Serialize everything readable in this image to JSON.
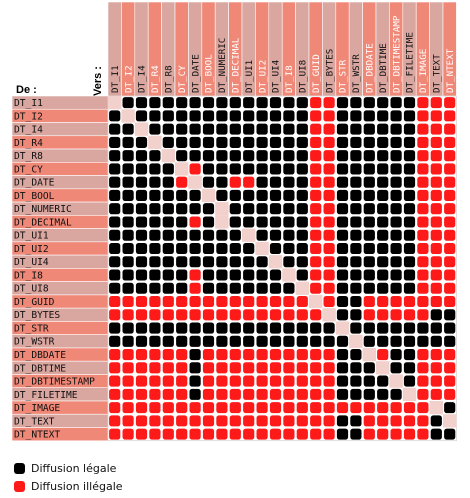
{
  "matrix": {
    "row_header": "De :",
    "column_header": "Vers :",
    "types": [
      "DT_I1",
      "DT_I2",
      "DT_I4",
      "DT_R4",
      "DT_R8",
      "DT_CY",
      "DT_DATE",
      "DT_BOOL",
      "DT_NUMERIC",
      "DT_DECIMAL",
      "DT_UI1",
      "DT_UI2",
      "DT_UI4",
      "DT_I8",
      "DT_UI8",
      "DT_GUID",
      "DT_BYTES",
      "DT_STR",
      "DT_WSTR",
      "DT_DBDATE",
      "DT_DBTIME",
      "DT_DBTIMESTAMP",
      "DT_FILETIME",
      "DT_IMAGE",
      "DT_TEXT",
      "DT_NTEXT"
    ],
    "cells": [
      "-LLLLLLLLLLLLLLIILLLLLLIII",
      "L-LLLLLLLLLLLLLIILLLLLLIII",
      "LL-LLLLLLLLLLLLIILLLLLLIII",
      "LLL-LLLLLLLLLLLIILLLLLLIII",
      "LLLL-LLLLLLLLLLIILLLLLLIII",
      "LLLLL-ILLLLLLLLIILLLLLLIII",
      "LLLLLI-LLIILLLLIILLLLLLIII",
      "LLLLLLL-LLLLLLLIILLLLLLIII",
      "LLLLLLLL-LLLLLLIILLLLLLIII",
      "LLLLLLIL-LLLLLLIILLLLLLIII",
      "LLLLLLLLLL-LLLLIILLLLLLIII",
      "LLLLLLLLLLL-LLLIILLLLLLIII",
      "LLLLLLLLLLLL-LLIILLLLLLIII",
      "LLLLLLILLLLLL-LIILLLLLLIII",
      "LLLLLLILLLLLLL-IILLLLLLIII",
      "IIIIIIIIIIIIIII-ILLIIIIIII",
      "IIIIIIIIIIIIIIII-LLIIIIILL",
      "LLLLLLLLLLLLLLLLL-LLLLLLLL",
      "LLLLLLLLLLLLLLLLLL-LLLLLLL",
      "IIIIIILIIIIIIIIIILL-ILLIII",
      "IIIIIILIIIIIIIIIILLL-LLIII",
      "IIIIIILIIIIIIIIIILLLL-LIII",
      "IIIIIILIIIIIIIIIILLLLL-III",
      "IIIIIIIIIIIIIIIIIIIIIIII-LL",
      "IIIIIIIIIIIIIIIIILLIIIIIL-L",
      "IIIIIIIIIIIIIIIIILLIIIIILL-"
    ]
  },
  "legend": {
    "legal_label": "Diffusion légale",
    "illegal_label": "Diffusion illégale"
  },
  "colors": {
    "legal": "#000000",
    "illegal": "#ff1a1a",
    "row_light": "#d9a6a0",
    "row_dark": "#f08878",
    "grid_fill": "#ffffff",
    "grid_line": "#c8c8c8",
    "diagonal": "#f2d0cc"
  }
}
